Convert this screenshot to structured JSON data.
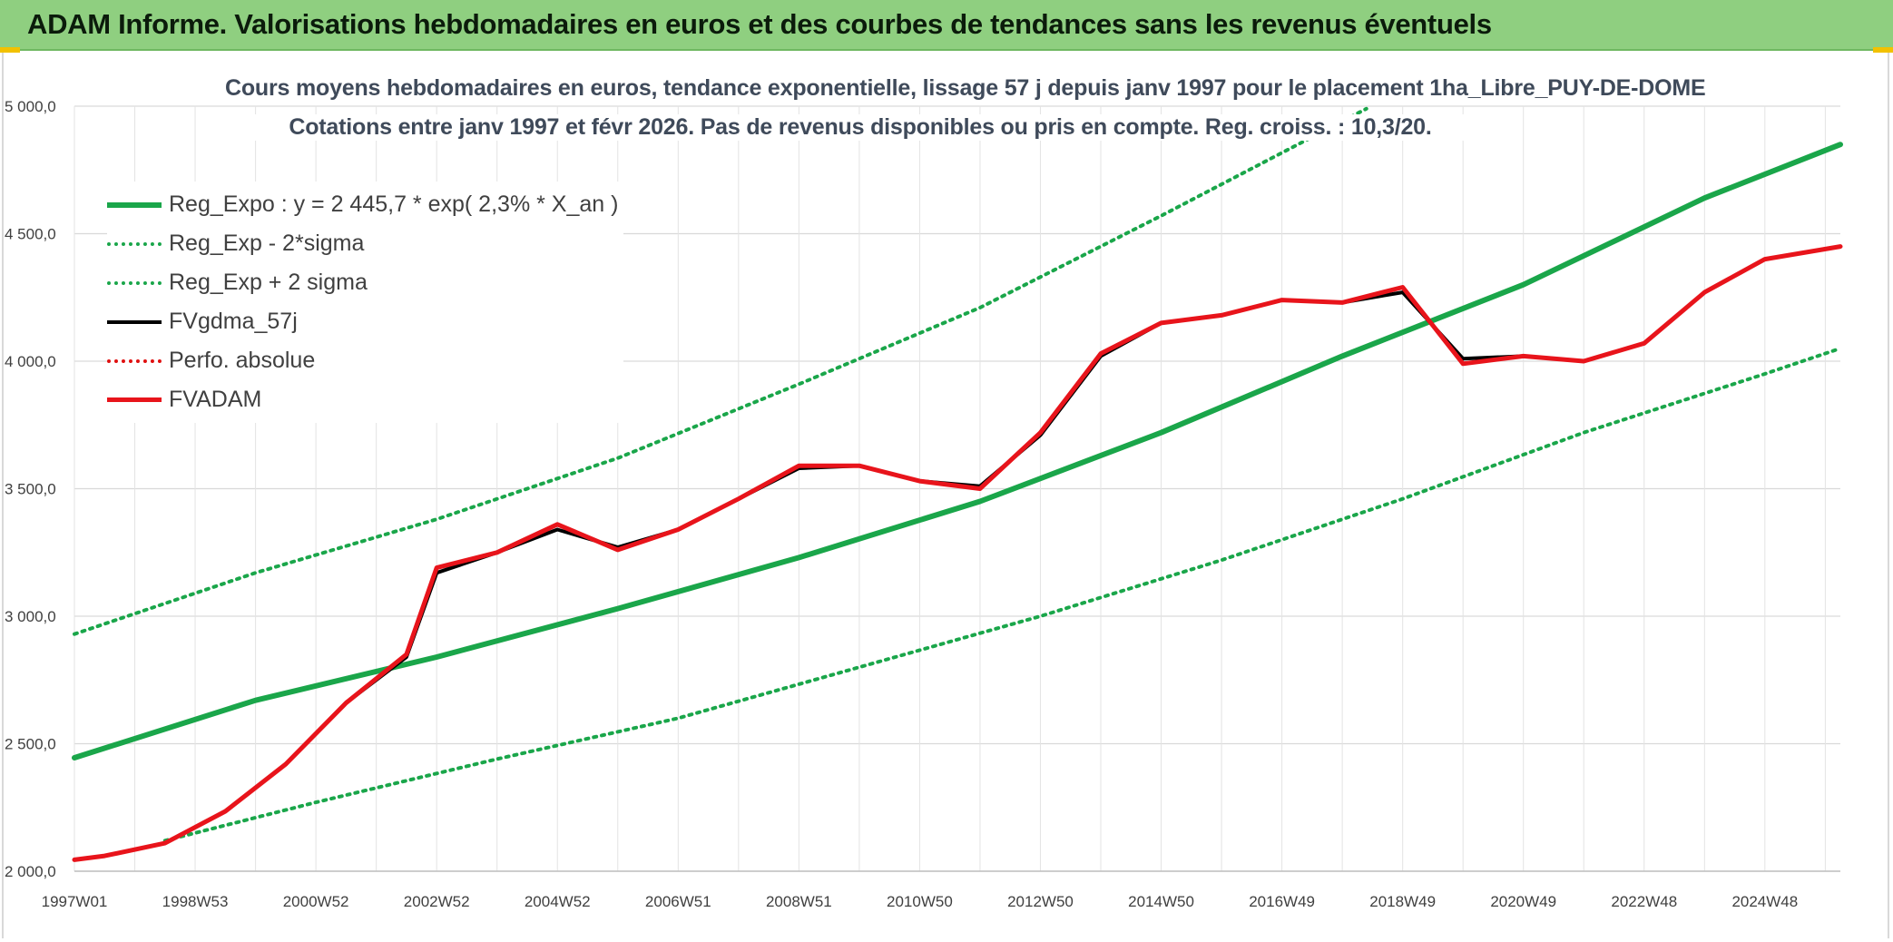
{
  "header": {
    "title": "ADAM Informe. Valorisations hebdomadaires en euros et des courbes de tendances sans les revenus éventuels"
  },
  "chart_data": {
    "type": "line",
    "title": "Cours moyens hebdomadaires en euros, tendance exponentielle, lissage 57 j depuis janv 1997 pour le placement 1ha_Libre_PUY-DE-DOME",
    "subtitle": "Cotations entre janv 1997 et févr 2026. Pas de revenus disponibles ou pris en compte. Reg. croiss. : 10,3/20.",
    "xlabel": "",
    "ylabel": "",
    "ylim": [
      2000,
      5000
    ],
    "xlim": [
      1997.0,
      2026.25
    ],
    "y_ticks": [
      "2 000,0",
      "2 500,0",
      "3 000,0",
      "3 500,0",
      "4 000,0",
      "4 500,0",
      "5 000,0"
    ],
    "y_tick_values": [
      2000,
      2500,
      3000,
      3500,
      4000,
      4500,
      5000
    ],
    "x_ticks": [
      "1997W01",
      "1998W53",
      "2000W52",
      "2002W52",
      "2004W52",
      "2006W51",
      "2008W51",
      "2010W50",
      "2012W50",
      "2014W50",
      "2016W49",
      "2018W49",
      "2020W49",
      "2022W48",
      "2024W48"
    ],
    "x_tick_values": [
      1997.0,
      1999.0,
      2001.0,
      2003.0,
      2005.0,
      2007.0,
      2009.0,
      2011.0,
      2013.0,
      2015.0,
      2017.0,
      2019.0,
      2021.0,
      2023.0,
      2025.0
    ],
    "grid": true,
    "legend_position": "top-left",
    "series": [
      {
        "name": "Reg_Expo : y = 2 445,7 * exp( 2,3% *  X_an )",
        "style": "solid",
        "color": "#1aa64a",
        "x": [
          1997.0,
          2000.0,
          2003.0,
          2006.0,
          2009.0,
          2012.0,
          2015.0,
          2018.0,
          2021.0,
          2024.0,
          2026.25
        ],
        "values": [
          2445,
          2670,
          2840,
          3030,
          3230,
          3450,
          3720,
          4020,
          4300,
          4640,
          4850
        ]
      },
      {
        "name": "Reg_Exp - 2*sigma",
        "style": "dotted",
        "color": "#1aa64a",
        "x": [
          1998.5,
          2001.0,
          2004.0,
          2007.0,
          2010.0,
          2013.0,
          2016.0,
          2019.0,
          2022.0,
          2025.0,
          2026.25
        ],
        "values": [
          2120,
          2270,
          2440,
          2600,
          2800,
          3000,
          3220,
          3460,
          3720,
          3950,
          4050
        ]
      },
      {
        "name": "Reg_Exp + 2 sigma",
        "style": "dotted",
        "color": "#1aa64a",
        "x": [
          1997.0,
          2000.0,
          2003.0,
          2006.0,
          2009.0,
          2012.0,
          2015.0,
          2018.4
        ],
        "values": [
          2930,
          3170,
          3380,
          3620,
          3910,
          4210,
          4570,
          4990
        ]
      },
      {
        "name": "FVgdma_57j",
        "style": "solid",
        "color": "#000000",
        "x": [
          1997.0,
          1997.5,
          1998.5,
          1999.5,
          2000.5,
          2001.5,
          2002.5,
          2003.0,
          2004.0,
          2005.0,
          2006.0,
          2007.0,
          2008.0,
          2009.0,
          2010.0,
          2011.0,
          2012.0,
          2013.0,
          2014.0,
          2015.0,
          2016.0,
          2017.0,
          2018.0,
          2019.0,
          2020.0,
          2021.0,
          2022.0,
          2023.0,
          2024.0,
          2025.0,
          2026.25
        ],
        "values": [
          2045,
          2060,
          2110,
          2235,
          2420,
          2660,
          2840,
          3170,
          3250,
          3340,
          3270,
          3340,
          3460,
          3580,
          3590,
          3530,
          3510,
          3710,
          4020,
          4150,
          4180,
          4240,
          4230,
          4270,
          4010,
          4020,
          4000,
          4070,
          4270,
          4400,
          4450
        ]
      },
      {
        "name": "Perfo. absolue",
        "style": "dotted",
        "color": "#e01010",
        "x": [],
        "values": []
      },
      {
        "name": "FVADAM",
        "style": "solid",
        "color": "#e8141b",
        "x": [
          1997.0,
          1997.5,
          1998.5,
          1999.5,
          2000.5,
          2001.5,
          2002.5,
          2003.0,
          2004.0,
          2005.0,
          2006.0,
          2007.0,
          2008.0,
          2009.0,
          2010.0,
          2011.0,
          2012.0,
          2013.0,
          2014.0,
          2015.0,
          2016.0,
          2017.0,
          2018.0,
          2019.0,
          2020.0,
          2021.0,
          2022.0,
          2023.0,
          2024.0,
          2025.0,
          2026.25
        ],
        "values": [
          2045,
          2060,
          2110,
          2235,
          2420,
          2660,
          2850,
          3190,
          3250,
          3360,
          3260,
          3340,
          3460,
          3590,
          3590,
          3530,
          3500,
          3720,
          4030,
          4150,
          4180,
          4240,
          4230,
          4290,
          3990,
          4020,
          4000,
          4070,
          4270,
          4400,
          4450
        ]
      }
    ]
  }
}
